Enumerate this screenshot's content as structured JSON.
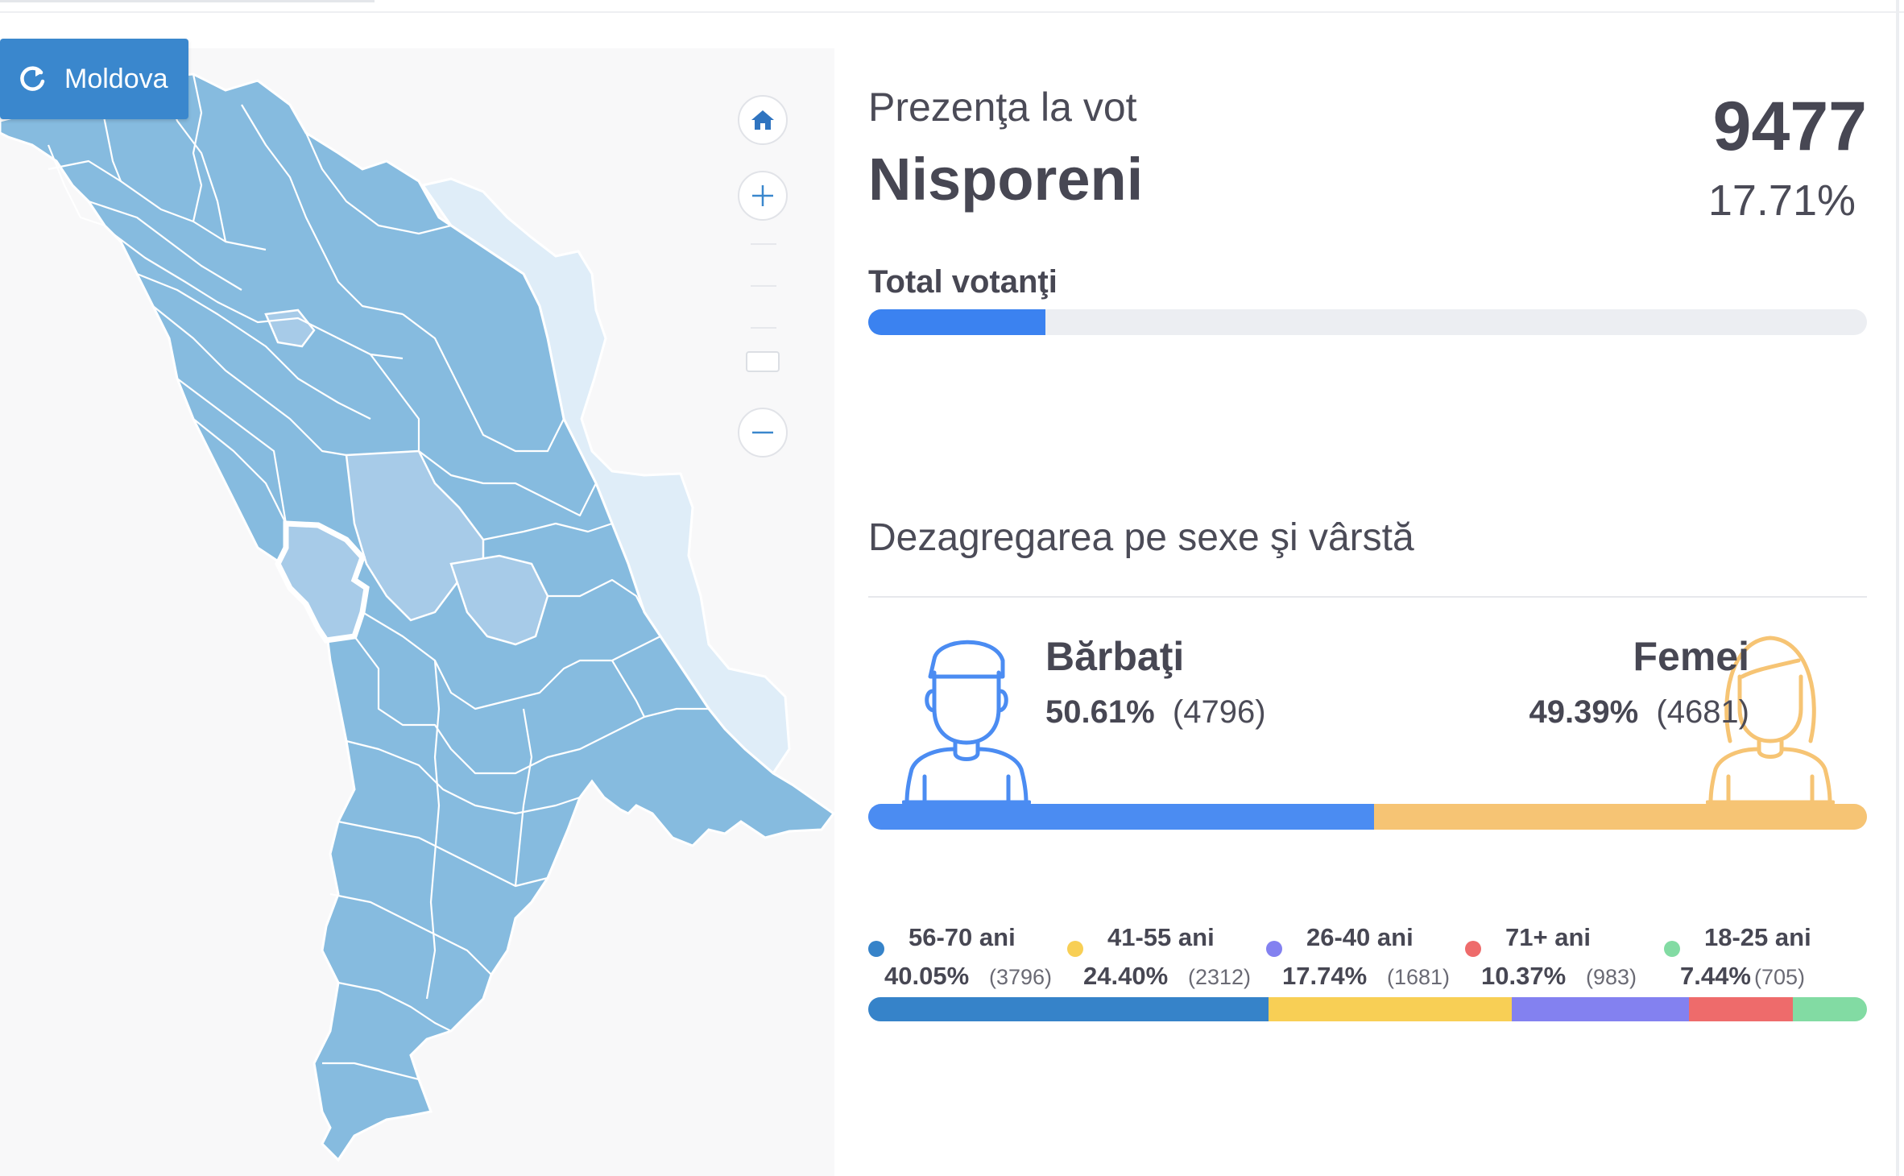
{
  "map": {
    "reset_button_label": "Moldova",
    "colors": {
      "region": "#86bbdf",
      "region_alt": "#a7cbe8",
      "transnistria": "#dfedf8",
      "border": "#ffffff",
      "selected_outline": "#ffffff"
    },
    "selected_region": "Nisporeni"
  },
  "panel": {
    "small_title": "Prezenţa la vot",
    "region_name": "Nisporeni",
    "turnout_count": "9477",
    "turnout_percent": "17.71%",
    "total_label": "Total votanţi",
    "total_progress": 0.1771,
    "total_progress_color": "#3b82f0",
    "section_title": "Dezagregarea pe sexe şi vârstă"
  },
  "gender": {
    "men": {
      "label": "Bărbaţi",
      "percent": "50.61%",
      "count": "(4796)",
      "fraction": 0.5061,
      "color": "#4b8cf2",
      "icon": "man-icon"
    },
    "women": {
      "label": "Femei",
      "percent": "49.39%",
      "count": "(4681)",
      "fraction": 0.4939,
      "color": "#f6c474",
      "icon": "woman-icon"
    }
  },
  "age": [
    {
      "label": "56-70 ani",
      "percent": "40.05%",
      "count": "(3796)",
      "fraction": 0.4005,
      "color": "#3683c9"
    },
    {
      "label": "41-55 ani",
      "percent": "24.40%",
      "count": "(2312)",
      "fraction": 0.244,
      "color": "#f8cf55"
    },
    {
      "label": "26-40 ani",
      "percent": "17.74%",
      "count": "(1681)",
      "fraction": 0.1774,
      "color": "#8381f0"
    },
    {
      "label": "71+ ani",
      "percent": "10.37%",
      "count": "(983)",
      "fraction": 0.1037,
      "color": "#ee6b6b"
    },
    {
      "label": "18-25 ani",
      "percent": "7.44%",
      "count": "(705)",
      "fraction": 0.0744,
      "color": "#82dba3"
    }
  ]
}
